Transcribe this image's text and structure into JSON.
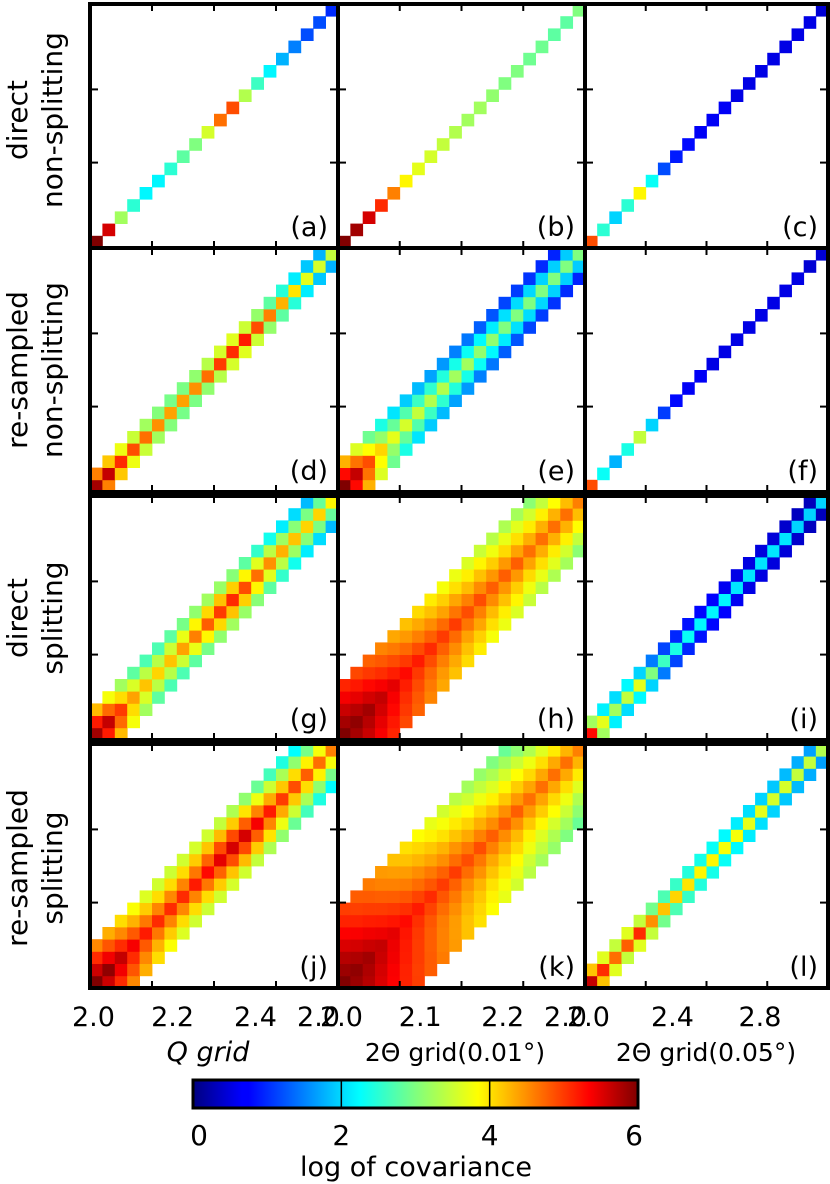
{
  "figure": {
    "row_labels": [
      [
        "direct",
        "non-splitting"
      ],
      [
        "re-sampled",
        "non-splitting"
      ],
      [
        "direct",
        "splitting"
      ],
      [
        "re-sampled",
        "splitting"
      ]
    ],
    "panel_labels": [
      "(a)",
      "(b)",
      "(c)",
      "(d)",
      "(e)",
      "(f)",
      "(g)",
      "(h)",
      "(i)",
      "(j)",
      "(k)",
      "(l)"
    ],
    "column_xlabels": [
      "Q grid",
      "2Θ grid(0.01°)",
      "2Θ grid(0.05°)"
    ],
    "colorbar_label": "log of covariance"
  },
  "chart_data": {
    "type": "heatmap",
    "grid": {
      "rows": 4,
      "cols": 3
    },
    "colormap": "jet",
    "clim": [
      0,
      6
    ],
    "colorbar_ticks": [
      "0",
      "2",
      "4",
      "6"
    ],
    "columns": [
      {
        "xlabel": "Q grid",
        "xlim": [
          2.0,
          2.6
        ],
        "xticks": [
          "2.0",
          "2.2",
          "2.4",
          "2.0"
        ],
        "bins": 20
      },
      {
        "xlabel": "2Θ grid(0.01°)",
        "xlim": [
          2.0,
          2.3
        ],
        "xticks": [
          "2.0",
          "2.1",
          "2.2",
          "2.0"
        ],
        "bins": 20
      },
      {
        "xlabel": "2Θ grid(0.05°)",
        "xlim": [
          2.0,
          3.2
        ],
        "xticks": [
          "2.0",
          "2.4",
          "2.8"
        ],
        "bins": 20
      }
    ],
    "panels": [
      {
        "label": "(a)",
        "row": "direct non-splitting",
        "column": "Q grid",
        "halfwidth": 0,
        "diagonal": [
          6.0,
          5.5,
          3.2,
          2.5,
          2.2,
          2.2,
          2.5,
          2.8,
          3.0,
          3.5,
          4.6,
          4.8,
          3.3,
          2.6,
          2.2,
          1.8,
          1.5,
          1.2,
          1.2,
          1.0
        ]
      },
      {
        "label": "(b)",
        "row": "direct non-splitting",
        "column": "2Θ grid(0.01°)",
        "halfwidth": 0,
        "diagonal": [
          6.0,
          5.8,
          5.5,
          5.0,
          4.5,
          3.8,
          3.6,
          3.5,
          3.4,
          3.3,
          3.2,
          3.2,
          3.1,
          3.0,
          3.0,
          2.9,
          2.9,
          2.8,
          2.8,
          3.0
        ]
      },
      {
        "label": "(c)",
        "row": "direct non-splitting",
        "column": "2Θ grid(0.05°)",
        "halfwidth": 0,
        "diagonal": [
          4.8,
          2.5,
          2.0,
          2.5,
          3.8,
          2.3,
          1.2,
          0.9,
          0.8,
          0.7,
          0.7,
          0.7,
          0.6,
          0.6,
          0.6,
          0.6,
          0.6,
          0.6,
          0.6,
          0.5
        ]
      },
      {
        "label": "(d)",
        "row": "re-sampled non-splitting",
        "column": "Q grid",
        "halfwidth": 1,
        "diagonal": [
          5.8,
          5.6,
          5.0,
          4.8,
          4.6,
          4.4,
          4.3,
          4.3,
          4.4,
          4.6,
          4.9,
          5.0,
          5.1,
          4.8,
          4.5,
          4.2,
          3.9,
          3.6,
          3.5,
          3.4
        ]
      },
      {
        "label": "(e)",
        "row": "re-sampled non-splitting",
        "column": "2Θ grid(0.01°)",
        "halfwidth": 2,
        "diagonal": [
          6.0,
          5.6,
          4.8,
          4.0,
          3.6,
          3.5,
          3.4,
          3.3,
          3.3,
          3.2,
          3.2,
          3.1,
          3.1,
          3.0,
          3.0,
          3.0,
          3.0,
          3.0,
          3.0,
          3.0
        ]
      },
      {
        "label": "(f)",
        "row": "re-sampled non-splitting",
        "column": "2Θ grid(0.05°)",
        "halfwidth": 0,
        "diagonal": [
          4.8,
          2.3,
          1.8,
          2.4,
          3.4,
          2.0,
          1.1,
          0.8,
          0.7,
          0.7,
          0.6,
          0.6,
          0.6,
          0.6,
          0.6,
          0.6,
          0.6,
          0.6,
          0.5,
          0.5
        ]
      },
      {
        "label": "(g)",
        "row": "direct splitting",
        "column": "Q grid",
        "halfwidth": 2,
        "diagonal": [
          5.8,
          5.6,
          4.9,
          4.3,
          4.1,
          4.0,
          4.1,
          4.3,
          4.5,
          4.7,
          4.9,
          5.0,
          4.8,
          4.6,
          4.4,
          4.2,
          4.1,
          4.0,
          4.0,
          3.8
        ]
      },
      {
        "label": "(h)",
        "row": "direct splitting",
        "column": "2Θ grid(0.01°)",
        "halfwidth": 4,
        "diagonal": [
          6.0,
          5.9,
          5.8,
          5.6,
          5.4,
          5.2,
          5.1,
          5.0,
          4.9,
          4.9,
          4.8,
          4.8,
          4.7,
          4.7,
          4.7,
          4.6,
          4.6,
          4.6,
          4.6,
          4.5
        ]
      },
      {
        "label": "(i)",
        "row": "direct splitting",
        "column": "2Θ grid(0.05°)",
        "halfwidth": 1,
        "diagonal": [
          5.2,
          3.6,
          3.2,
          3.4,
          3.6,
          3.0,
          2.6,
          2.4,
          2.3,
          2.2,
          2.2,
          2.2,
          2.1,
          2.1,
          2.1,
          2.1,
          2.1,
          2.0,
          2.0,
          2.0
        ]
      },
      {
        "label": "(j)",
        "row": "re-sampled splitting",
        "column": "Q grid",
        "halfwidth": 3,
        "diagonal": [
          6.0,
          5.9,
          5.6,
          5.3,
          5.1,
          5.0,
          5.0,
          5.0,
          5.1,
          5.2,
          5.4,
          5.5,
          5.5,
          5.3,
          5.1,
          4.9,
          4.8,
          4.7,
          4.6,
          4.5
        ]
      },
      {
        "label": "(k)",
        "row": "re-sampled splitting",
        "column": "2Θ grid(0.01°)",
        "halfwidth": 6,
        "diagonal": [
          6.0,
          5.9,
          5.8,
          5.6,
          5.4,
          5.2,
          5.1,
          5.0,
          4.9,
          4.9,
          4.8,
          4.8,
          4.7,
          4.7,
          4.7,
          4.6,
          4.6,
          4.6,
          4.6,
          4.5
        ]
      },
      {
        "label": "(l)",
        "row": "re-sampled splitting",
        "column": "2Θ grid(0.05°)",
        "halfwidth": 1,
        "diagonal": [
          5.6,
          5.0,
          4.6,
          4.7,
          5.0,
          4.4,
          4.1,
          4.0,
          3.9,
          3.8,
          3.8,
          3.7,
          3.7,
          3.6,
          3.6,
          3.5,
          3.5,
          3.4,
          3.4,
          3.3
        ]
      }
    ]
  }
}
